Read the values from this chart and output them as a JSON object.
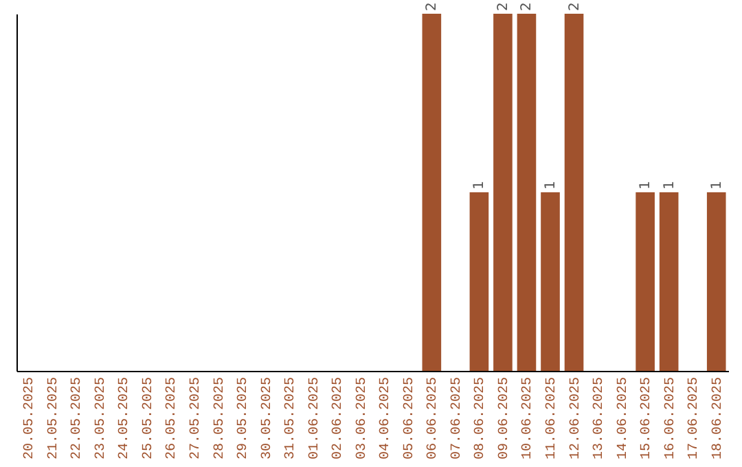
{
  "chart_data": {
    "type": "bar",
    "categories": [
      "20.05.2025",
      "21.05.2025",
      "22.05.2025",
      "23.05.2025",
      "24.05.2025",
      "25.05.2025",
      "26.05.2025",
      "27.05.2025",
      "28.05.2025",
      "29.05.2025",
      "30.05.2025",
      "31.05.2025",
      "01.06.2025",
      "02.06.2025",
      "03.06.2025",
      "04.06.2025",
      "05.06.2025",
      "06.06.2025",
      "07.06.2025",
      "08.06.2025",
      "09.06.2025",
      "10.06.2025",
      "11.06.2025",
      "12.06.2025",
      "13.06.2025",
      "14.06.2025",
      "15.06.2025",
      "16.06.2025",
      "17.06.2025",
      "18.06.2025"
    ],
    "values": [
      null,
      null,
      null,
      null,
      null,
      null,
      null,
      null,
      null,
      null,
      null,
      null,
      null,
      null,
      null,
      null,
      null,
      2,
      null,
      1,
      2,
      2,
      1,
      2,
      null,
      null,
      1,
      1,
      null,
      1
    ],
    "data_labels": true,
    "color": "#a0522d",
    "grid": false
  }
}
